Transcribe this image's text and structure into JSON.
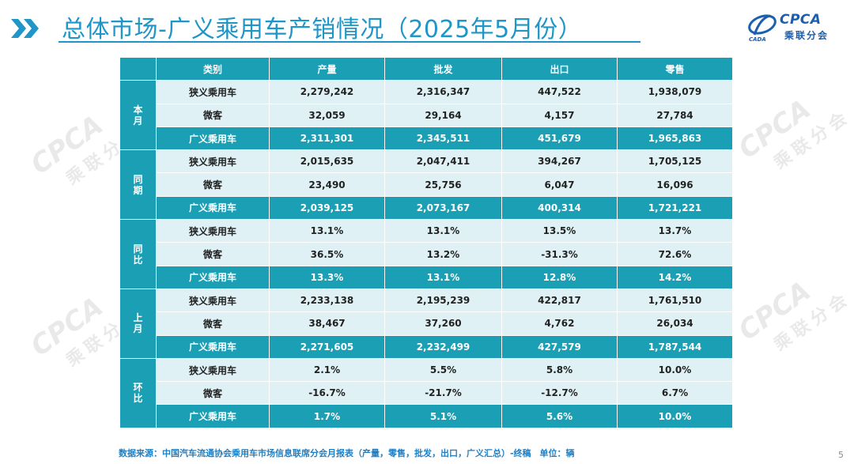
{
  "header": {
    "title": "总体市场-广义乘用车产销情况（2025年5月份）",
    "logo_text": "CPCA",
    "logo_sub": "乘联分会",
    "logo_emblem_text": "CADA"
  },
  "colors": {
    "accent": "#1a9fb4",
    "title": "#1f95c8",
    "light_row": "#dff1f5",
    "brand_blue": "#1c5fae"
  },
  "table": {
    "headers": [
      "类别",
      "产量",
      "批发",
      "出口",
      "零售"
    ],
    "groups": [
      {
        "label": "本月",
        "rows": [
          {
            "category": "狭义乘用车",
            "values": [
              "2,279,242",
              "2,316,347",
              "447,522",
              "1,938,079"
            ]
          },
          {
            "category": "微客",
            "values": [
              "32,059",
              "29,164",
              "4,157",
              "27,784"
            ]
          },
          {
            "category": "广义乘用车",
            "values": [
              "2,311,301",
              "2,345,511",
              "451,679",
              "1,965,863"
            ]
          }
        ]
      },
      {
        "label": "同期",
        "rows": [
          {
            "category": "狭义乘用车",
            "values": [
              "2,015,635",
              "2,047,411",
              "394,267",
              "1,705,125"
            ]
          },
          {
            "category": "微客",
            "values": [
              "23,490",
              "25,756",
              "6,047",
              "16,096"
            ]
          },
          {
            "category": "广义乘用车",
            "values": [
              "2,039,125",
              "2,073,167",
              "400,314",
              "1,721,221"
            ]
          }
        ]
      },
      {
        "label": "同比",
        "rows": [
          {
            "category": "狭义乘用车",
            "values": [
              "13.1%",
              "13.1%",
              "13.5%",
              "13.7%"
            ]
          },
          {
            "category": "微客",
            "values": [
              "36.5%",
              "13.2%",
              "-31.3%",
              "72.6%"
            ]
          },
          {
            "category": "广义乘用车",
            "values": [
              "13.3%",
              "13.1%",
              "12.8%",
              "14.2%"
            ]
          }
        ]
      },
      {
        "label": "上月",
        "rows": [
          {
            "category": "狭义乘用车",
            "values": [
              "2,233,138",
              "2,195,239",
              "422,817",
              "1,761,510"
            ]
          },
          {
            "category": "微客",
            "values": [
              "38,467",
              "37,260",
              "4,762",
              "26,034"
            ]
          },
          {
            "category": "广义乘用车",
            "values": [
              "2,271,605",
              "2,232,499",
              "427,579",
              "1,787,544"
            ]
          }
        ]
      },
      {
        "label": "环比",
        "rows": [
          {
            "category": "狭义乘用车",
            "values": [
              "2.1%",
              "5.5%",
              "5.8%",
              "10.0%"
            ]
          },
          {
            "category": "微客",
            "values": [
              "-16.7%",
              "-21.7%",
              "-12.7%",
              "6.7%"
            ]
          },
          {
            "category": "广义乘用车",
            "values": [
              "1.7%",
              "5.1%",
              "5.6%",
              "10.0%"
            ]
          }
        ]
      }
    ]
  },
  "footer": {
    "source": "数据来源：中国汽车流通协会乘用车市场信息联席分会月报表（产量，零售，批发，出口，广义汇总）-终稿　单位：辆",
    "page_number": "5"
  },
  "watermark": {
    "text": "CPCA",
    "sub": "乘联分会"
  }
}
